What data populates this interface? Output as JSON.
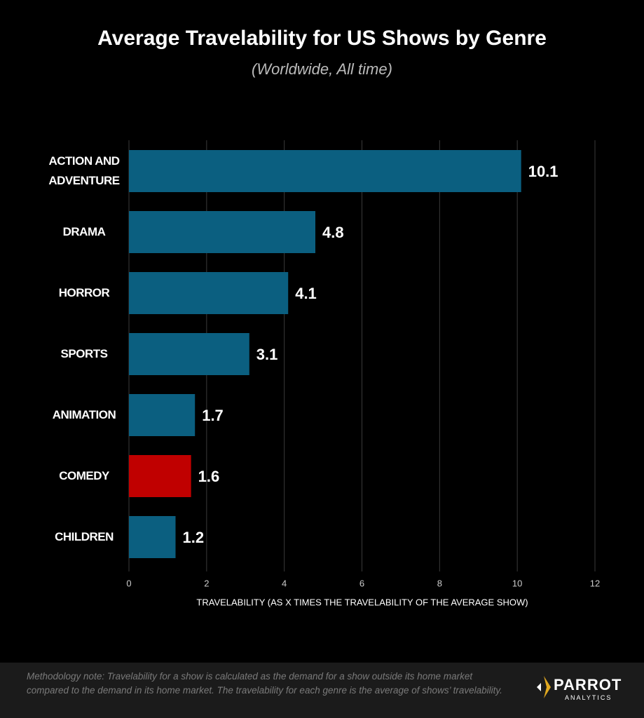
{
  "chart_data": {
    "type": "bar",
    "orientation": "horizontal",
    "title": "Average Travelability for US Shows by Genre",
    "subtitle": "(Worldwide, All time)",
    "categories": [
      "ACTION AND ADVENTURE",
      "DRAMA",
      "HORROR",
      "SPORTS",
      "ANIMATION",
      "COMEDY",
      "CHILDREN"
    ],
    "values": [
      10.1,
      4.8,
      4.1,
      3.1,
      1.7,
      1.6,
      1.2
    ],
    "colors": [
      "#0b5f80",
      "#0b5f80",
      "#0b5f80",
      "#0b5f80",
      "#0b5f80",
      "#c00000",
      "#0b5f80"
    ],
    "xlim": [
      0,
      12
    ],
    "xticks": [
      0,
      2,
      4,
      6,
      8,
      10,
      12
    ],
    "grid": true,
    "xlabel": "TRAVELABILITY (AS X TIMES THE TRAVELABILITY OF THE AVERAGE SHOW)"
  },
  "footer": {
    "note": "Methodology note: Travelability for a show is calculated as the demand for a show outside its home market compared to the demand in its home market. The travelability for each genre is the average of shows’ travelability.",
    "brand": "PARROT",
    "brand_sub": "ANALYTICS"
  }
}
